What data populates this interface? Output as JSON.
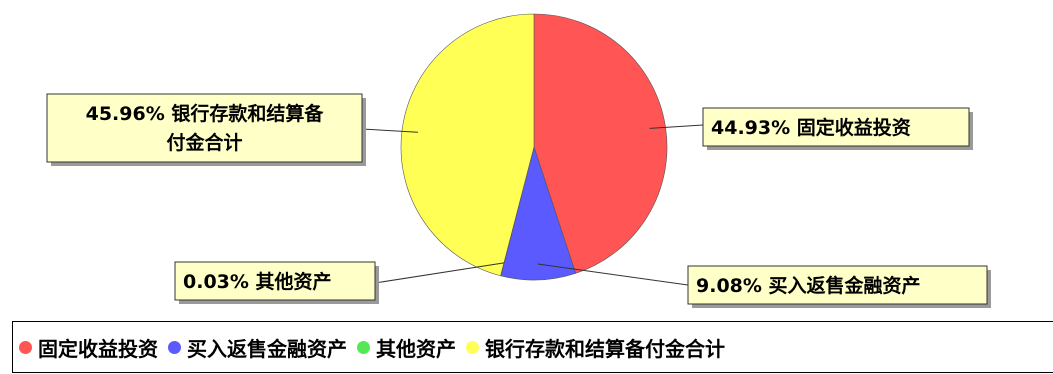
{
  "chart_data": {
    "type": "pie",
    "slices": [
      {
        "label": "固定收益投资",
        "percent": 44.93,
        "color": "#ff5555",
        "callout": "44.93% 固定收益投资"
      },
      {
        "label": "买入返售金融资产",
        "percent": 9.08,
        "color": "#5a5aff",
        "callout": "9.08% 买入返售金融资产"
      },
      {
        "label": "其他资产",
        "percent": 0.03,
        "color": "#55e855",
        "callout": "0.03% 其他资产"
      },
      {
        "label": "银行存款和结算备付金合计",
        "percent": 45.96,
        "color": "#ffff55",
        "callout": "45.96% 银行存款和结算备付金合计",
        "callout_lines": [
          "45.96% 银行存款和结算备",
          "付金合计"
        ]
      }
    ],
    "start_angle": "12 o'clock",
    "direction": "clockwise",
    "legend_position": "bottom"
  }
}
